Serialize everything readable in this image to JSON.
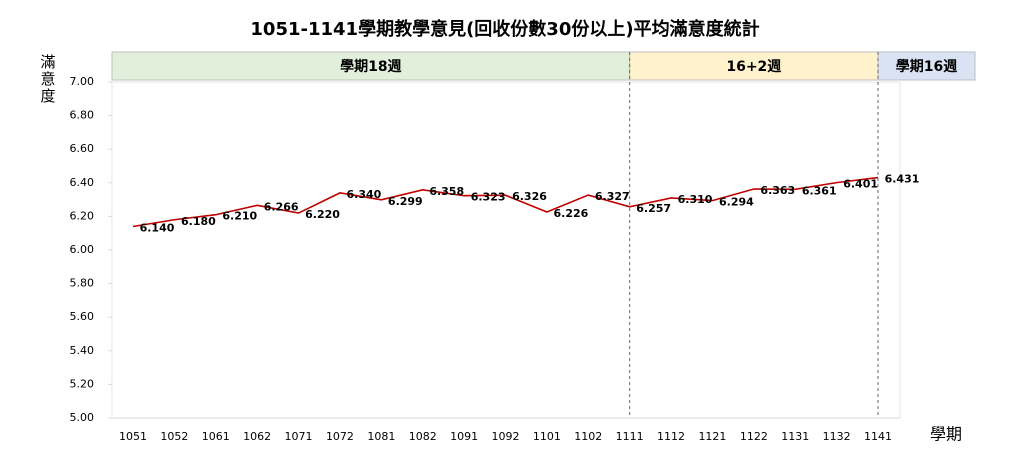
{
  "chart_data": {
    "type": "line",
    "title": "1051-1141學期教學意見(回收份數30份以上)平均滿意度統計",
    "y_label": "滿意度",
    "x_label": "學期",
    "categories": [
      "1051",
      "1052",
      "1061",
      "1062",
      "1071",
      "1072",
      "1081",
      "1082",
      "1091",
      "1092",
      "1101",
      "1102",
      "1111",
      "1112",
      "1121",
      "1122",
      "1131",
      "1132",
      "1141"
    ],
    "series": [
      {
        "name": "平均滿意度",
        "color": "#c00000",
        "values": [
          6.14,
          6.18,
          6.21,
          6.266,
          6.22,
          6.34,
          6.299,
          6.358,
          6.323,
          6.326,
          6.226,
          6.327,
          6.257,
          6.31,
          6.294,
          6.363,
          6.361,
          6.401,
          6.431
        ],
        "value_labels": [
          "6.140",
          "6.180",
          "6.210",
          "6.266",
          "6.220",
          "6.340",
          "6.299",
          "6.358",
          "6.323",
          "6.326",
          "6.226",
          "6.327",
          "6.257",
          "6.310",
          "6.294",
          "6.363",
          "6.361",
          "6.401",
          "6.431"
        ]
      }
    ],
    "ylim": [
      5,
      7
    ],
    "yticks": [
      {
        "value": 5,
        "label": "5.00"
      },
      {
        "value": 5.2,
        "label": "5.20"
      },
      {
        "value": 5.4,
        "label": "5.40"
      },
      {
        "value": 5.6,
        "label": "5.60"
      },
      {
        "value": 5.8,
        "label": "5.80"
      },
      {
        "value": 6,
        "label": "6.00"
      },
      {
        "value": 6.2,
        "label": "6.20"
      },
      {
        "value": 6.4,
        "label": "6.40"
      },
      {
        "value": 6.6,
        "label": "6.60"
      },
      {
        "value": 6.8,
        "label": "6.80"
      },
      {
        "value": 7,
        "label": "7.00"
      }
    ],
    "bands": [
      {
        "label": "學期18週",
        "start": "1051",
        "color": "#e2efda"
      },
      {
        "label": "16+2週",
        "start": "1111",
        "color": "#fff2cc"
      },
      {
        "label": "學期16週",
        "start": "1141",
        "color": "#dae3f3"
      }
    ]
  }
}
